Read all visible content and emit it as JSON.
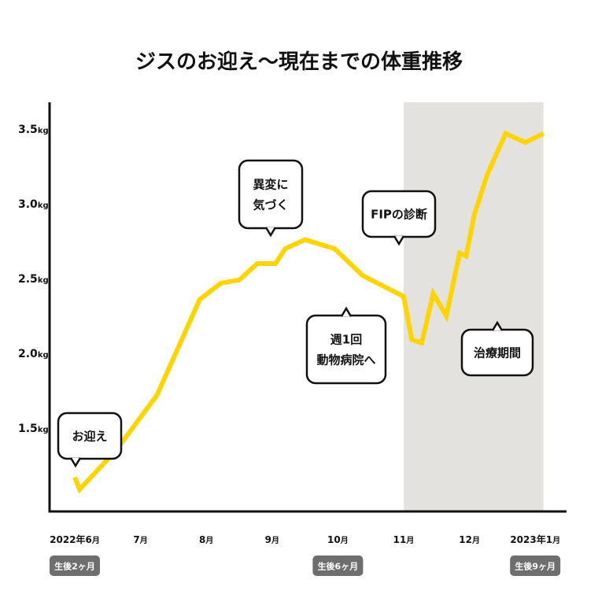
{
  "chart_data": {
    "type": "line",
    "title": "ジスのお迎え〜現在までの体重推移",
    "ylim": [
      1.0,
      3.65
    ],
    "y_ticks": [
      {
        "value": 1.5,
        "num": "1.5",
        "unit": "kg"
      },
      {
        "value": 2.0,
        "num": "2.0",
        "unit": "kg"
      },
      {
        "value": 2.5,
        "num": "2.5",
        "unit": "kg"
      },
      {
        "value": 3.0,
        "num": "3.0",
        "unit": "kg"
      },
      {
        "value": 3.5,
        "num": "3.5",
        "unit": "kg"
      }
    ],
    "x_ticks": [
      {
        "pos": 0,
        "num": "2022年6",
        "unit": "月"
      },
      {
        "pos": 4,
        "num": "7",
        "unit": "月"
      },
      {
        "pos": 8,
        "num": "8",
        "unit": "月"
      },
      {
        "pos": 12,
        "num": "9",
        "unit": "月"
      },
      {
        "pos": 16,
        "num": "10",
        "unit": "月"
      },
      {
        "pos": 20,
        "num": "11",
        "unit": "月"
      },
      {
        "pos": 24,
        "num": "12",
        "unit": "月"
      },
      {
        "pos": 28,
        "num": "2023年1",
        "unit": "月"
      }
    ],
    "series": [
      {
        "color": "#FFD400",
        "x": [
          0,
          0.3,
          2.5,
          5,
          7.6,
          8.9,
          10.0,
          11.1,
          12.2,
          12.8,
          14.0,
          15.8,
          17.5,
          20.0,
          20.5,
          21.1,
          21.8,
          22.6,
          23.4,
          23.8,
          24.3,
          25.1,
          26.2,
          27.4,
          28.5
        ],
        "y": [
          1.17,
          1.09,
          1.35,
          1.72,
          2.36,
          2.47,
          2.49,
          2.6,
          2.6,
          2.7,
          2.76,
          2.7,
          2.52,
          2.38,
          2.09,
          2.07,
          2.4,
          2.25,
          2.67,
          2.65,
          2.93,
          3.2,
          3.47,
          3.41,
          3.47
        ]
      }
    ],
    "shaded_region": {
      "x_from": 20,
      "x_to": 28.5,
      "color": "#E4E2DF"
    },
    "annotations": [
      {
        "lines": [
          "お迎え"
        ],
        "x": 0.3,
        "y": 1.09
      },
      {
        "lines": [
          "異変に",
          "気づく"
        ],
        "x": 12.2,
        "y": 2.6
      },
      {
        "lines": [
          "FIPの診断"
        ],
        "x": 20.0,
        "y": 2.38
      },
      {
        "lines": [
          "週1回",
          "動物病院へ"
        ],
        "x": 16.5,
        "y": 2.55
      },
      {
        "lines": [
          "治療期間"
        ],
        "x": 25.0,
        "y": 2.25
      }
    ],
    "age_labels": [
      {
        "pos": 0,
        "text": "生後2ヶ月"
      },
      {
        "pos": 16,
        "text": "生後6ヶ月"
      },
      {
        "pos": 28,
        "text": "生後9ヶ月"
      }
    ]
  }
}
